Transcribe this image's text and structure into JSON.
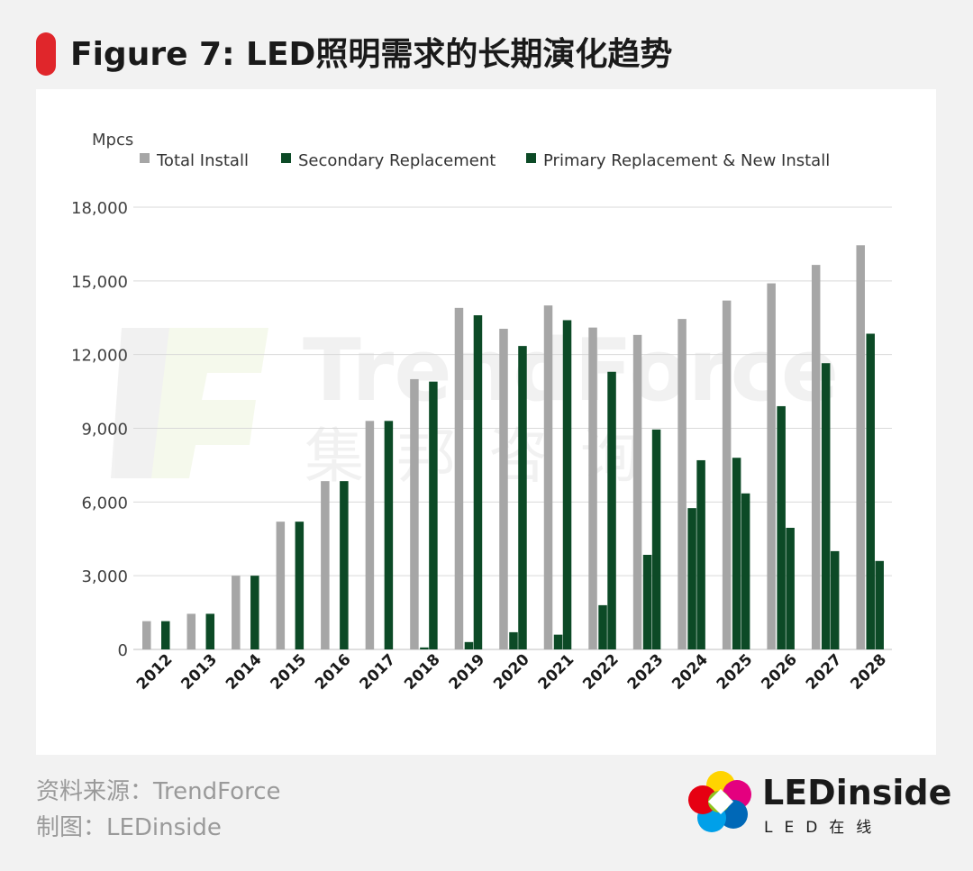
{
  "header": {
    "title": "Figure 7: LED照明需求的长期演化趋势"
  },
  "watermark": {
    "brand": "TrendForce",
    "brand_cn": "集邦咨询"
  },
  "footer": {
    "source": "资料来源：TrendForce",
    "maker": "制图：LEDinside"
  },
  "logo": {
    "name": "LEDinside",
    "sub": "LED在线"
  },
  "chart_data": {
    "type": "bar",
    "ylabel": "Mpcs",
    "ylim": [
      0,
      18000
    ],
    "yticks": [
      0,
      3000,
      6000,
      9000,
      12000,
      15000,
      18000
    ],
    "grid": true,
    "legend_position": "top",
    "categories": [
      "2012",
      "2013",
      "2014",
      "2015",
      "2016",
      "2017",
      "2018",
      "2019",
      "2020",
      "2021",
      "2022",
      "2023",
      "2024",
      "2025",
      "2026",
      "2027",
      "2028"
    ],
    "series": [
      {
        "name": "Total Install",
        "color": "#a6a6a6",
        "values": [
          1150,
          1450,
          3000,
          5200,
          6850,
          9300,
          11000,
          13900,
          13050,
          14000,
          13100,
          12800,
          13450,
          14200,
          14900,
          15650,
          16450
        ]
      },
      {
        "name": "Secondary Replacement",
        "color": "#0c4a26",
        "values": [
          0,
          0,
          0,
          0,
          0,
          0,
          80,
          300,
          700,
          600,
          1800,
          3850,
          5750,
          7800,
          9900,
          11650,
          12850
        ]
      },
      {
        "name": "Primary Replacement & New Install",
        "color": "#0c4a26",
        "values": [
          1150,
          1450,
          3000,
          5200,
          6850,
          9300,
          10900,
          13600,
          12350,
          13400,
          11300,
          8950,
          7700,
          6350,
          4950,
          4000,
          3600
        ]
      }
    ]
  }
}
